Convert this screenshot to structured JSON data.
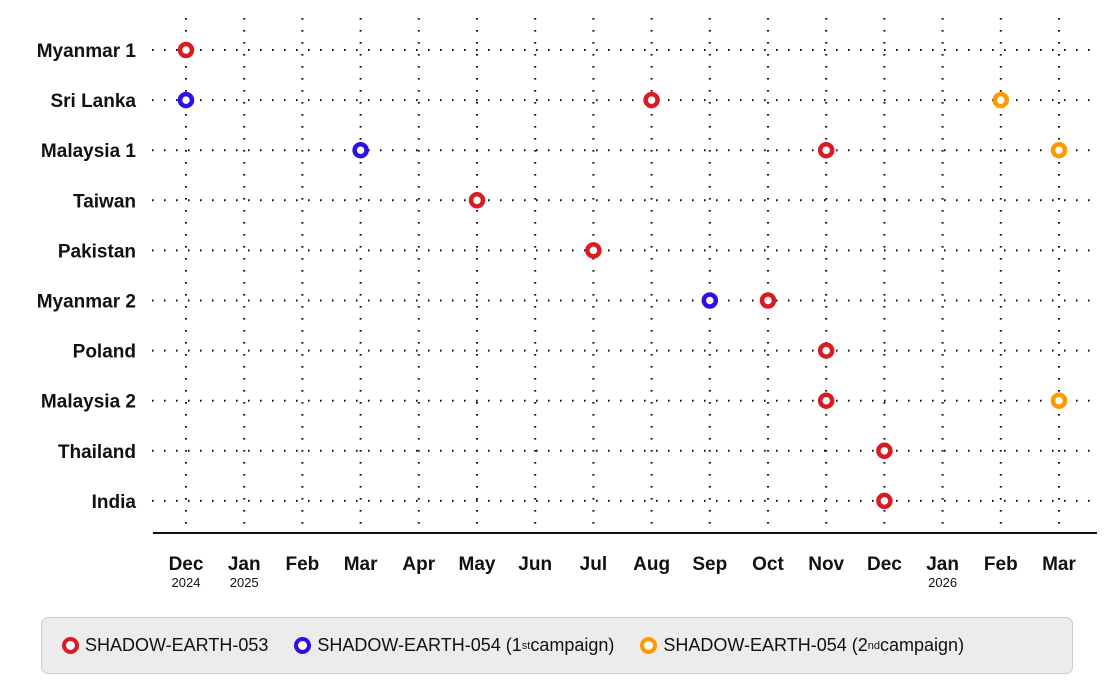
{
  "chart_data": {
    "type": "scatter",
    "categories": [
      "Myanmar 1",
      "Sri Lanka",
      "Malaysia 1",
      "Taiwan",
      "Pakistan",
      "Myanmar 2",
      "Poland",
      "Malaysia 2",
      "Thailand",
      "India"
    ],
    "x_ticks": [
      {
        "m": "Dec",
        "y": "2024"
      },
      {
        "m": "Jan",
        "y": "2025"
      },
      {
        "m": "Feb"
      },
      {
        "m": "Mar"
      },
      {
        "m": "Apr"
      },
      {
        "m": "May"
      },
      {
        "m": "Jun"
      },
      {
        "m": "Jul"
      },
      {
        "m": "Aug"
      },
      {
        "m": "Sep"
      },
      {
        "m": "Oct"
      },
      {
        "m": "Nov"
      },
      {
        "m": "Dec"
      },
      {
        "m": "Jan",
        "y": "2026"
      },
      {
        "m": "Feb"
      },
      {
        "m": "Mar"
      }
    ],
    "series": [
      {
        "name": "SHADOW-EARTH-053",
        "color": "#d91c24",
        "points": [
          [
            "Myanmar 1",
            "Dec 2024"
          ],
          [
            "Sri Lanka",
            "Aug 2025"
          ],
          [
            "Malaysia 1",
            "Nov 2025"
          ],
          [
            "Taiwan",
            "May 2025"
          ],
          [
            "Pakistan",
            "Jul 2025"
          ],
          [
            "Myanmar 2",
            "Oct 2025"
          ],
          [
            "Poland",
            "Nov 2025"
          ],
          [
            "Malaysia 2",
            "Nov 2025"
          ],
          [
            "Thailand",
            "Dec 2025"
          ],
          [
            "India",
            "Dec 2025"
          ]
        ],
        "idx": [
          [
            0,
            0
          ],
          [
            1,
            8
          ],
          [
            2,
            11
          ],
          [
            3,
            5
          ],
          [
            4,
            7
          ],
          [
            5,
            10
          ],
          [
            6,
            11
          ],
          [
            7,
            11
          ],
          [
            8,
            12
          ],
          [
            9,
            12
          ]
        ]
      },
      {
        "name": "SHADOW-EARTH-054 (1st campaign)",
        "color": "#2d10e6",
        "points": [
          [
            "Sri Lanka",
            "Dec 2024"
          ],
          [
            "Malaysia 1",
            "Mar 2025"
          ],
          [
            "Myanmar 2",
            "Sep 2025"
          ]
        ],
        "idx": [
          [
            1,
            0
          ],
          [
            2,
            3
          ],
          [
            5,
            9
          ]
        ]
      },
      {
        "name": "SHADOW-EARTH-054 (2nd campaign)",
        "color": "#ff9900",
        "points": [
          [
            "Sri Lanka",
            "Feb 2026"
          ],
          [
            "Malaysia 1",
            "Mar 2026"
          ],
          [
            "Malaysia 2",
            "Mar 2026"
          ]
        ],
        "idx": [
          [
            1,
            14
          ],
          [
            2,
            15
          ],
          [
            7,
            15
          ]
        ]
      }
    ],
    "legend_position": "bottom",
    "grid": "dotted"
  },
  "legend": [
    {
      "pre": "SHADOW-EARTH-053",
      "sup": "",
      "post": ""
    },
    {
      "pre": "SHADOW-EARTH-054 (1",
      "sup": "st",
      "post": " campaign)"
    },
    {
      "pre": "SHADOW-EARTH-054 (2",
      "sup": "nd",
      "post": " campaign)"
    }
  ]
}
